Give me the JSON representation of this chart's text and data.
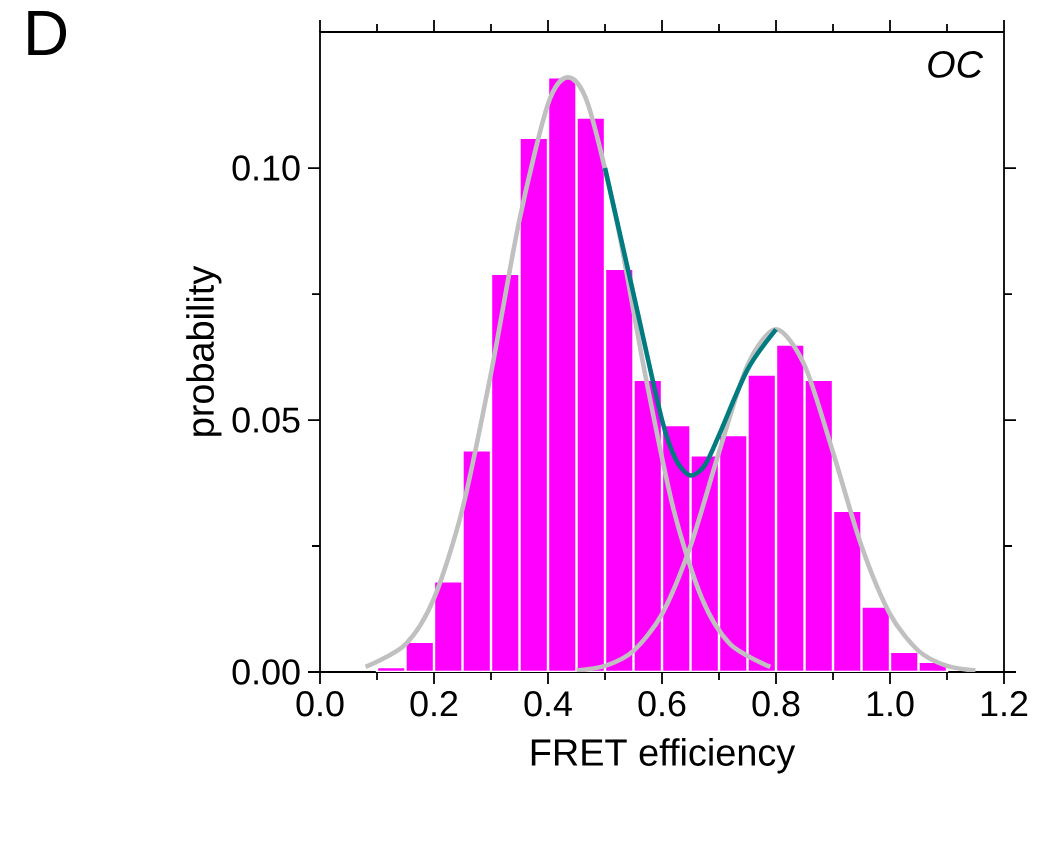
{
  "chart_data": {
    "type": "histogram",
    "xlabel": "FRET efficiency",
    "ylabel": "probability",
    "annotations": [
      "D",
      "OC"
    ],
    "bins": [
      0.1,
      0.15,
      0.2,
      0.25,
      0.3,
      0.35,
      0.4,
      0.45,
      0.5,
      0.55,
      0.6,
      0.65,
      0.7,
      0.75,
      0.8,
      0.85,
      0.9,
      0.95,
      1.0,
      1.05,
      1.1
    ],
    "values": [
      0.001,
      0.006,
      0.018,
      0.044,
      0.079,
      0.106,
      0.118,
      0.11,
      0.08,
      0.058,
      0.049,
      0.043,
      0.047,
      0.059,
      0.065,
      0.058,
      0.032,
      0.013,
      0.004,
      0.002
    ],
    "color": "#ff00ff",
    "series": [
      {
        "type": "line",
        "color": "#c0c0c0",
        "x": [
          0.08,
          0.15,
          0.2,
          0.25,
          0.3,
          0.35,
          0.4,
          0.435,
          0.47,
          0.52,
          0.57,
          0.62,
          0.67,
          0.72,
          0.79
        ],
        "values": [
          0.001,
          0.0055,
          0.0146,
          0.0324,
          0.0593,
          0.0898,
          0.1127,
          0.118,
          0.1127,
          0.0898,
          0.0593,
          0.0324,
          0.0146,
          0.0055,
          0.001
        ]
      },
      {
        "type": "line",
        "color": "#c0c0c0",
        "x": [
          0.45,
          0.5,
          0.55,
          0.6,
          0.65,
          0.7,
          0.75,
          0.8,
          0.85,
          0.9,
          0.95,
          1.0,
          1.05,
          1.1,
          1.15
        ],
        "values": [
          0.0003,
          0.0012,
          0.0042,
          0.0115,
          0.025,
          0.0436,
          0.0609,
          0.068,
          0.0609,
          0.0436,
          0.025,
          0.0115,
          0.0042,
          0.0012,
          0.0003
        ]
      },
      {
        "type": "line",
        "color": "#007b7f",
        "x": [
          0.5,
          0.55,
          0.6,
          0.625,
          0.65,
          0.675,
          0.7,
          0.75,
          0.8
        ],
        "values": [
          0.1,
          0.075,
          0.05,
          0.042,
          0.039,
          0.041,
          0.047,
          0.06,
          0.068
        ]
      }
    ],
    "xlim": [
      0,
      1.2
    ],
    "ylim": [
      0,
      0.127
    ],
    "xticks": [
      {
        "value": 0,
        "label": "0.0"
      },
      {
        "value": 0.2,
        "label": "0.2"
      },
      {
        "value": 0.4,
        "label": "0.4"
      },
      {
        "value": 0.6,
        "label": "0.6"
      },
      {
        "value": 0.8,
        "label": "0.8"
      },
      {
        "value": 1.0,
        "label": "1.0"
      },
      {
        "value": 1.2,
        "label": "1.2"
      }
    ],
    "yticks": [
      {
        "value": 0,
        "label": "0.00"
      },
      {
        "value": 0.05,
        "label": "0.05"
      },
      {
        "value": 0.1,
        "label": "0.10"
      }
    ],
    "line_style": "solid",
    "marker": "none"
  }
}
